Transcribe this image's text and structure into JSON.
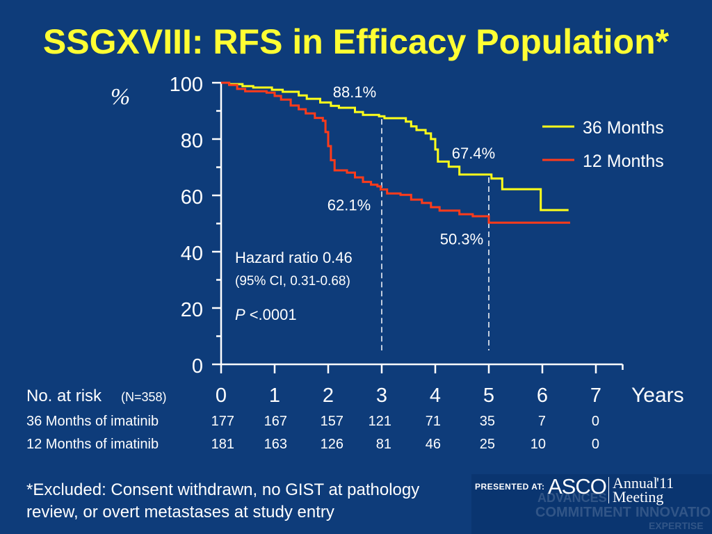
{
  "slide": {
    "background_color": "#0e3c7a",
    "title_color": "#ffff33"
  },
  "chart_data": {
    "title": "SSGXVIII: RFS in Efficacy Population*",
    "type": "line",
    "step": true,
    "xlabel": "Years",
    "ylabel": "%",
    "xlim": [
      0,
      7.5
    ],
    "ylim": [
      0,
      100
    ],
    "x_ticks": [
      0,
      1,
      2,
      3,
      4,
      5,
      6,
      7
    ],
    "y_ticks": [
      0,
      20,
      40,
      60,
      80,
      100
    ],
    "y_minor_ticks": [
      10,
      30,
      50,
      70,
      90
    ],
    "grid": false,
    "legend_position": "top-right",
    "series": [
      {
        "name": "36 Months",
        "color": "#ffff1a",
        "points": [
          [
            0,
            100
          ],
          [
            0.15,
            99.5
          ],
          [
            0.4,
            98.8
          ],
          [
            0.6,
            98.3
          ],
          [
            0.95,
            97.5
          ],
          [
            1.15,
            96.8
          ],
          [
            1.45,
            95.5
          ],
          [
            1.6,
            94.3
          ],
          [
            1.85,
            93
          ],
          [
            2.05,
            91.8
          ],
          [
            2.2,
            91.1
          ],
          [
            2.5,
            89.6
          ],
          [
            2.65,
            88.6
          ],
          [
            2.95,
            88.1
          ],
          [
            3.05,
            87.4
          ],
          [
            3.45,
            86.2
          ],
          [
            3.55,
            84.5
          ],
          [
            3.65,
            83.2
          ],
          [
            3.82,
            82
          ],
          [
            3.92,
            80
          ],
          [
            4.0,
            76.3
          ],
          [
            4.05,
            72
          ],
          [
            4.25,
            70.2
          ],
          [
            4.45,
            67.4
          ],
          [
            5.05,
            66
          ],
          [
            5.25,
            62.2
          ],
          [
            5.97,
            54.8
          ],
          [
            6.49,
            54.8
          ]
        ]
      },
      {
        "name": "12 Months",
        "color": "#ff3b1a",
        "points": [
          [
            0,
            100
          ],
          [
            0.15,
            99.2
          ],
          [
            0.3,
            97.8
          ],
          [
            0.45,
            97
          ],
          [
            0.85,
            96.5
          ],
          [
            1.0,
            95.3
          ],
          [
            1.12,
            94
          ],
          [
            1.3,
            91.9
          ],
          [
            1.45,
            90.6
          ],
          [
            1.58,
            89.1
          ],
          [
            1.75,
            87.5
          ],
          [
            1.9,
            86.5
          ],
          [
            1.95,
            82.5
          ],
          [
            2.0,
            77.5
          ],
          [
            2.05,
            72.5
          ],
          [
            2.12,
            68.9
          ],
          [
            2.35,
            68.1
          ],
          [
            2.5,
            66.4
          ],
          [
            2.65,
            64.8
          ],
          [
            2.8,
            63.8
          ],
          [
            2.92,
            63.2
          ],
          [
            2.98,
            62.1
          ],
          [
            3.1,
            60.7
          ],
          [
            3.35,
            60.2
          ],
          [
            3.55,
            58.5
          ],
          [
            3.75,
            57.3
          ],
          [
            3.92,
            55.8
          ],
          [
            4.08,
            54.6
          ],
          [
            4.45,
            53.3
          ],
          [
            4.7,
            52.6
          ],
          [
            5.0,
            50.3
          ],
          [
            6.52,
            50.3
          ]
        ]
      }
    ],
    "point_labels": [
      {
        "series": 0,
        "x": 3,
        "y": 88.1,
        "text": "88.1%"
      },
      {
        "series": 0,
        "x": 5,
        "y": 67.4,
        "text": "67.4%"
      },
      {
        "series": 1,
        "x": 3,
        "y": 62.1,
        "text": "62.1%"
      },
      {
        "series": 1,
        "x": 5,
        "y": 50.3,
        "text": "50.3%"
      }
    ],
    "reference_lines": [
      {
        "x": 3,
        "y_top": 88.1
      },
      {
        "x": 5,
        "y_top": 67.4
      }
    ],
    "stats": {
      "hazard_ratio": "Hazard ratio 0.46",
      "ci": "(95% CI, 0.31-0.68)",
      "p_label": "P",
      "p_value": "<.0001"
    }
  },
  "risk_table": {
    "header": "No. at risk",
    "n_note": "(N=358)",
    "rows": [
      {
        "label": "36 Months of imatinib",
        "values": [
          177,
          167,
          157,
          121,
          71,
          35,
          7,
          0
        ]
      },
      {
        "label": "12 Months of imatinib",
        "values": [
          181,
          163,
          126,
          81,
          46,
          25,
          10,
          0
        ]
      }
    ]
  },
  "footnote": {
    "lines": [
      "*Excluded: Consent withdrawn, no GIST at pathology",
      "review, or overt metastases at study entry"
    ]
  },
  "logo": {
    "presented_at": "PRESENTED AT:",
    "org": "ASCO",
    "annual": "Annual",
    "year": "'11",
    "meeting": "Meeting",
    "background_words": [
      "ADVANCES",
      "COMMITMENT",
      "INNOVATIO",
      "EXPERTISE"
    ]
  }
}
